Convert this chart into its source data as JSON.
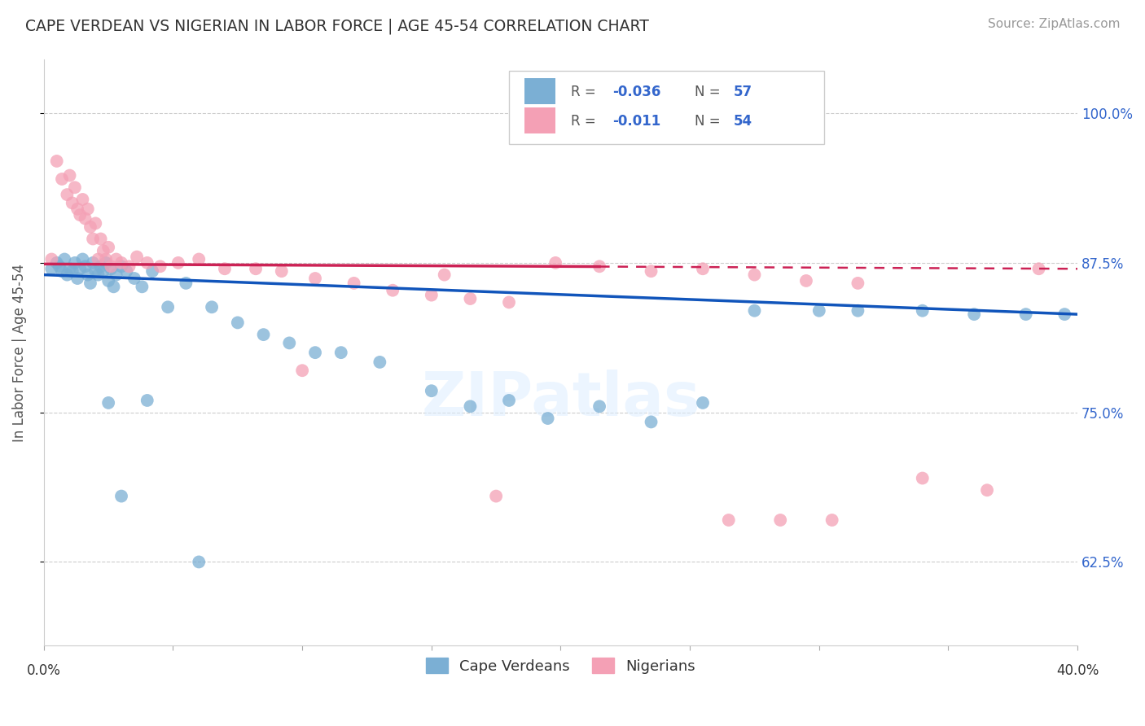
{
  "title": "CAPE VERDEAN VS NIGERIAN IN LABOR FORCE | AGE 45-54 CORRELATION CHART",
  "source": "Source: ZipAtlas.com",
  "ylabel": "In Labor Force | Age 45-54",
  "ytick_values": [
    0.625,
    0.75,
    0.875,
    1.0
  ],
  "xmin": 0.0,
  "xmax": 0.4,
  "ymin": 0.555,
  "ymax": 1.045,
  "blue_color": "#7BAFD4",
  "pink_color": "#F4A0B5",
  "trendline_blue": "#1155BB",
  "trendline_pink": "#CC2255",
  "watermark": "ZIPatlas",
  "blue_trend_y0": 0.865,
  "blue_trend_y1": 0.832,
  "pink_trend_y0": 0.874,
  "pink_trend_y1": 0.87,
  "pink_solid_xend": 0.215,
  "cape_verdean_x": [
    0.003,
    0.005,
    0.006,
    0.007,
    0.008,
    0.009,
    0.01,
    0.011,
    0.012,
    0.013,
    0.014,
    0.015,
    0.016,
    0.017,
    0.018,
    0.019,
    0.02,
    0.021,
    0.022,
    0.023,
    0.024,
    0.025,
    0.026,
    0.027,
    0.028,
    0.03,
    0.032,
    0.035,
    0.038,
    0.042,
    0.048,
    0.055,
    0.065,
    0.075,
    0.085,
    0.095,
    0.105,
    0.115,
    0.13,
    0.15,
    0.165,
    0.18,
    0.195,
    0.215,
    0.235,
    0.255,
    0.275,
    0.3,
    0.315,
    0.34,
    0.36,
    0.38,
    0.395,
    0.025,
    0.03,
    0.04,
    0.06
  ],
  "cape_verdean_y": [
    0.87,
    0.875,
    0.872,
    0.868,
    0.878,
    0.865,
    0.87,
    0.868,
    0.875,
    0.862,
    0.87,
    0.878,
    0.872,
    0.865,
    0.858,
    0.875,
    0.868,
    0.865,
    0.872,
    0.868,
    0.875,
    0.86,
    0.87,
    0.855,
    0.865,
    0.872,
    0.868,
    0.862,
    0.855,
    0.868,
    0.838,
    0.858,
    0.838,
    0.825,
    0.815,
    0.808,
    0.8,
    0.8,
    0.792,
    0.768,
    0.755,
    0.76,
    0.745,
    0.755,
    0.742,
    0.758,
    0.835,
    0.835,
    0.835,
    0.835,
    0.832,
    0.832,
    0.832,
    0.758,
    0.68,
    0.76,
    0.625
  ],
  "nigerian_x": [
    0.003,
    0.005,
    0.007,
    0.009,
    0.01,
    0.011,
    0.012,
    0.013,
    0.014,
    0.015,
    0.016,
    0.017,
    0.018,
    0.019,
    0.02,
    0.021,
    0.022,
    0.023,
    0.024,
    0.025,
    0.026,
    0.028,
    0.03,
    0.033,
    0.036,
    0.04,
    0.045,
    0.052,
    0.06,
    0.07,
    0.082,
    0.092,
    0.105,
    0.12,
    0.135,
    0.15,
    0.165,
    0.18,
    0.198,
    0.215,
    0.235,
    0.255,
    0.275,
    0.295,
    0.315,
    0.34,
    0.365,
    0.385,
    0.1,
    0.155,
    0.175,
    0.265,
    0.285,
    0.305
  ],
  "nigerian_y": [
    0.878,
    0.96,
    0.945,
    0.932,
    0.948,
    0.925,
    0.938,
    0.92,
    0.915,
    0.928,
    0.912,
    0.92,
    0.905,
    0.895,
    0.908,
    0.878,
    0.895,
    0.885,
    0.878,
    0.888,
    0.872,
    0.878,
    0.875,
    0.872,
    0.88,
    0.875,
    0.872,
    0.875,
    0.878,
    0.87,
    0.87,
    0.868,
    0.862,
    0.858,
    0.852,
    0.848,
    0.845,
    0.842,
    0.875,
    0.872,
    0.868,
    0.87,
    0.865,
    0.86,
    0.858,
    0.695,
    0.685,
    0.87,
    0.785,
    0.865,
    0.68,
    0.66,
    0.66,
    0.66
  ]
}
